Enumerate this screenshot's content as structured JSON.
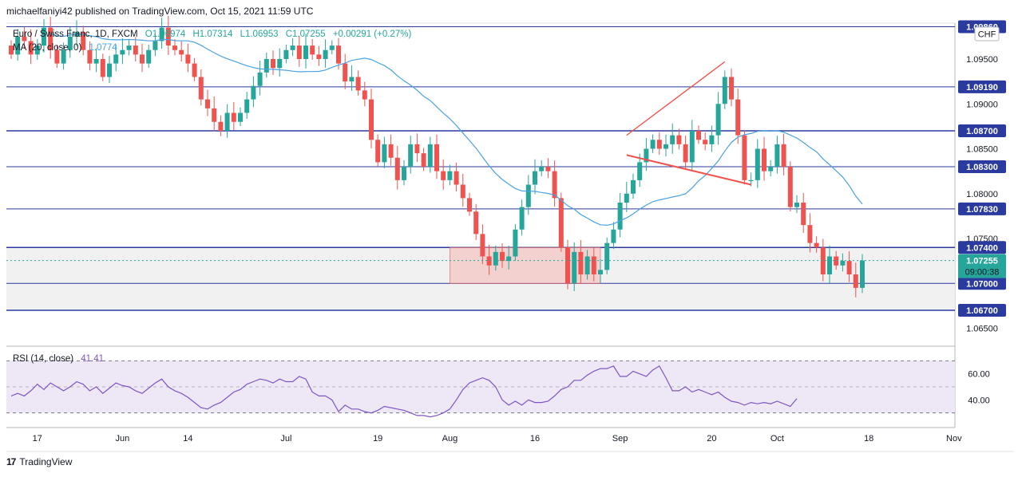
{
  "header": {
    "publisher": "michaelfaniyi42 published on TradingView.com, Oct 15, 2021 11:59 UTC"
  },
  "legend": {
    "symbol": "Euro / Swiss Franc, 1D, FXCM",
    "open": "O1.06974",
    "high": "H1.07314",
    "low": "L1.06953",
    "close": "C1.07255",
    "change": "+0.00291 (+0.27%)",
    "ma_label": "MA (20, close, 0)",
    "ma_value": "1.0774"
  },
  "currency_button": "CHF",
  "rsi_legend": {
    "label": "RSI (14, close)",
    "value": "41.41"
  },
  "footer": {
    "brand": "TradingView",
    "logo": "17"
  },
  "colors": {
    "bull": "#26a69a",
    "bear": "#ef5350",
    "ma": "#4aa3e0",
    "level": "#2a3a9e",
    "rsi": "#7e57c2",
    "rsi_band": "#ede7f6",
    "zone": "#f4c7c3"
  },
  "price_axis": {
    "ticks": [
      "1.09500",
      "1.09000",
      "1.08500",
      "1.08000",
      "1.07500",
      "1.06500"
    ]
  },
  "rsi_axis": {
    "ticks": [
      "60.00",
      "40.00"
    ]
  },
  "time_axis": {
    "labels": [
      "17",
      "Jun",
      "14",
      "Jul",
      "19",
      "Aug",
      "16",
      "Sep",
      "20",
      "Oct",
      "18",
      "Nov"
    ]
  },
  "last_price": {
    "price": "1.07255",
    "countdown": "09:00:38"
  },
  "chart_data": {
    "type": "candlestick",
    "title": "Euro / Swiss Franc, 1D, FXCM",
    "ylim": [
      1.063,
      1.099
    ],
    "levels": [
      {
        "value": 1.0986,
        "label": "1.09860"
      },
      {
        "value": 1.0919,
        "label": "1.09190"
      },
      {
        "value": 1.087,
        "label": "1.08700"
      },
      {
        "value": 1.083,
        "label": "1.08300"
      },
      {
        "value": 1.0783,
        "label": "1.07830"
      },
      {
        "value": 1.074,
        "label": "1.07400"
      },
      {
        "value": 1.07,
        "label": "1.07000"
      },
      {
        "value": 1.067,
        "label": "1.06700"
      }
    ],
    "closes": [
      1.0955,
      1.0975,
      1.097,
      1.0955,
      1.0965,
      1.0985,
      1.096,
      1.0945,
      1.096,
      1.0975,
      1.098,
      1.096,
      1.0945,
      1.095,
      1.093,
      1.0945,
      1.0955,
      1.096,
      1.0965,
      1.0955,
      1.0945,
      1.096,
      1.097,
      1.0985,
      1.0965,
      1.096,
      1.0955,
      1.0945,
      1.093,
      1.0905,
      1.0895,
      1.088,
      1.087,
      1.089,
      1.088,
      1.089,
      1.0905,
      1.092,
      1.0935,
      1.095,
      1.094,
      1.095,
      1.096,
      1.0965,
      1.095,
      1.0965,
      1.0955,
      1.095,
      1.096,
      1.0965,
      1.0945,
      1.0925,
      1.093,
      1.0915,
      1.0905,
      1.086,
      1.0835,
      1.0855,
      1.084,
      1.0815,
      1.083,
      1.0855,
      1.0845,
      1.083,
      1.0855,
      1.0825,
      1.0815,
      1.0825,
      1.081,
      1.0795,
      1.078,
      1.0755,
      1.073,
      1.072,
      1.0735,
      1.0725,
      1.073,
      1.076,
      1.0785,
      1.081,
      1.0825,
      1.083,
      1.0825,
      1.0795,
      1.074,
      1.07,
      1.0735,
      1.071,
      1.073,
      1.071,
      1.0715,
      1.0745,
      1.076,
      1.079,
      1.08,
      1.0815,
      1.0835,
      1.085,
      1.086,
      1.085,
      1.0855,
      1.0865,
      1.0855,
      1.0835,
      1.087,
      1.086,
      1.0855,
      1.0865,
      1.09,
      1.093,
      1.0905,
      1.0865,
      1.0815,
      1.0815,
      1.085,
      1.0825,
      1.083,
      1.0855,
      1.083,
      1.0785,
      1.079,
      1.0765,
      1.0745,
      1.074,
      1.071,
      1.073,
      1.072,
      1.0725,
      1.071,
      1.0695,
      1.07255
    ],
    "rsi": [
      43,
      45,
      43,
      47,
      52,
      48,
      53,
      50,
      47,
      50,
      54,
      52,
      47,
      50,
      45,
      49,
      53,
      51,
      50,
      47,
      45,
      49,
      53,
      56,
      50,
      47,
      45,
      42,
      38,
      34,
      33,
      36,
      38,
      42,
      46,
      48,
      52,
      54,
      56,
      55,
      53,
      56,
      54,
      54,
      58,
      56,
      46,
      43,
      43,
      40,
      31,
      36,
      33,
      33,
      31,
      30,
      32,
      35,
      34,
      33,
      32,
      30,
      28,
      28,
      27,
      28,
      30,
      33,
      40,
      48,
      53,
      55,
      57,
      55,
      50,
      40,
      36,
      39,
      36,
      40,
      38,
      38,
      39,
      43,
      48,
      50,
      55,
      55,
      59,
      62,
      64,
      64,
      66,
      58,
      58,
      62,
      60,
      58,
      63,
      66,
      57,
      47,
      47,
      50,
      46,
      48,
      46,
      44,
      46,
      42,
      39,
      38,
      36,
      38,
      37,
      38,
      37,
      39,
      37,
      35,
      41
    ]
  }
}
